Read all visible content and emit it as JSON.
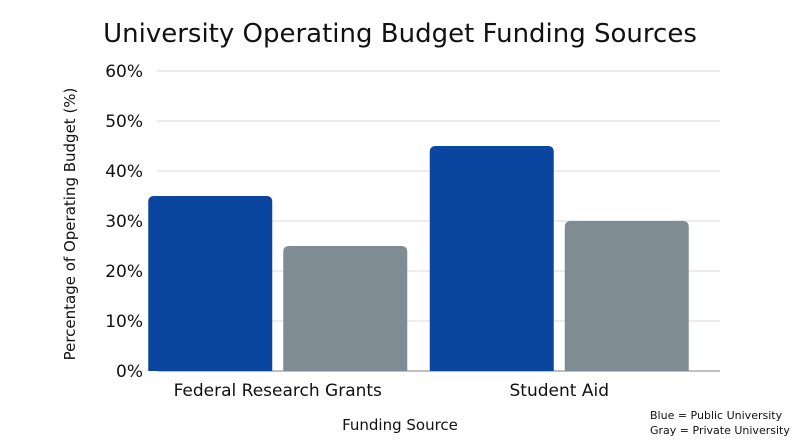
{
  "chart_data": {
    "type": "bar",
    "title": "University Operating Budget Funding Sources",
    "xlabel": "Funding Source",
    "ylabel": "Percentage of Operating Budget (%)",
    "categories": [
      "Federal Research Grants",
      "Student Aid"
    ],
    "series": [
      {
        "name": "Public University",
        "values": [
          35,
          45
        ],
        "color": "#0a45a0"
      },
      {
        "name": "Private University",
        "values": [
          25,
          30
        ],
        "color": "#7f8c93"
      }
    ],
    "ylim": [
      0,
      60
    ],
    "yticks": [
      0,
      10,
      20,
      30,
      40,
      50,
      60
    ],
    "ytick_labels": [
      "0%",
      "10%",
      "20%",
      "30%",
      "40%",
      "50%",
      "60%"
    ],
    "grid": true,
    "notes": [
      "Blue = Public University",
      "Gray = Private University"
    ]
  }
}
